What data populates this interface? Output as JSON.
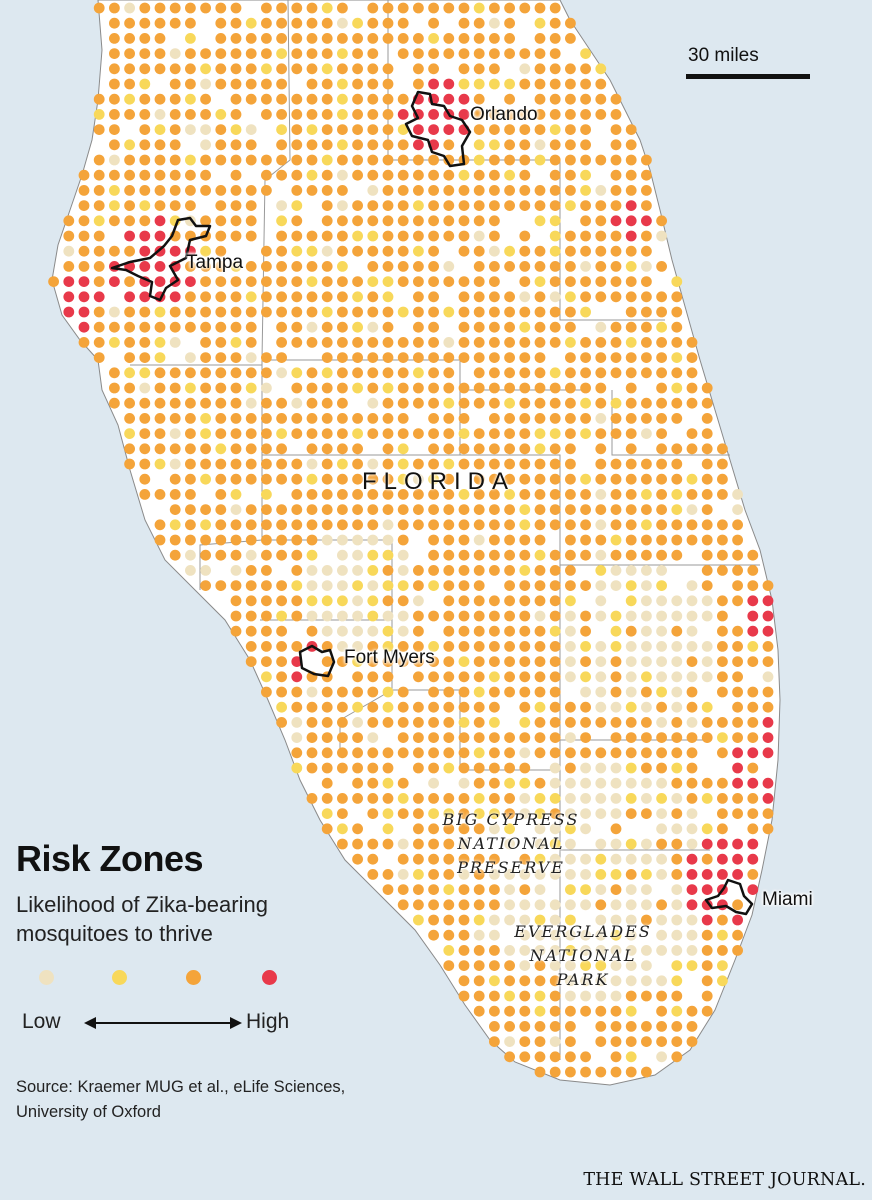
{
  "map": {
    "state_label": "FLORIDA",
    "cities": [
      {
        "id": "orlando",
        "label": "Orlando"
      },
      {
        "id": "tampa",
        "label": "Tampa"
      },
      {
        "id": "fort-myers",
        "label": "Fort Myers"
      },
      {
        "id": "miami",
        "label": "Miami"
      }
    ],
    "parks": [
      {
        "id": "big-cypress",
        "label": "BIG CYPRESS\nNATIONAL\nPRESERVE"
      },
      {
        "id": "everglades",
        "label": "EVERGLADES\nNATIONAL\nPARK"
      }
    ],
    "scale_label": "30 miles",
    "colors": {
      "water": "#dde8f0",
      "land": "#ffffff",
      "low": "#efe2c0",
      "mid_low": "#f8d85a",
      "mid_high": "#f4a43a",
      "high": "#e8394a",
      "county_border": "#9a9a9a",
      "city_outline": "#111111"
    }
  },
  "legend": {
    "title": "Risk Zones",
    "subtitle": "Likelihood of Zika-bearing\nmosquitoes to thrive",
    "levels": [
      {
        "name": "low",
        "color": "#efe2c0"
      },
      {
        "name": "mid-low",
        "color": "#f8d85a"
      },
      {
        "name": "mid-high",
        "color": "#f4a43a"
      },
      {
        "name": "high",
        "color": "#e8394a"
      }
    ],
    "low_label": "Low",
    "high_label": "High"
  },
  "source": "Source: Kraemer MUG et al., eLife Sciences,\nUniversity of Oxford",
  "credit": "THE WALL STREET JOURNAL."
}
